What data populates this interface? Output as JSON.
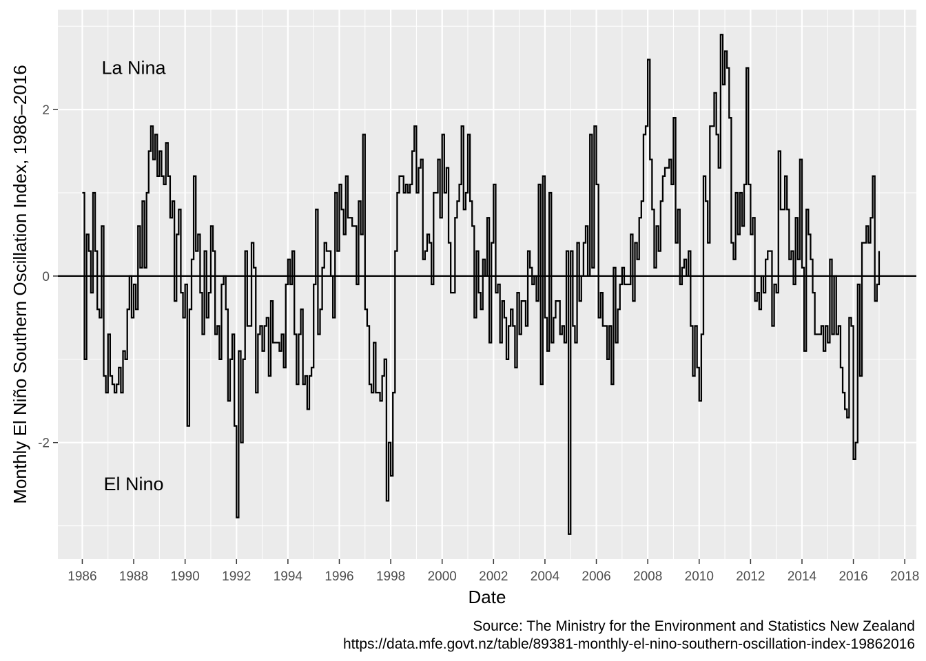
{
  "chart_data": {
    "type": "line",
    "style": "step",
    "xlabel": "Date",
    "ylabel": "Monthly El Niño Southern Oscillation Index, 1986–2016",
    "xlim": [
      1985.05,
      2018.45
    ],
    "ylim": [
      -3.4,
      3.2
    ],
    "x_ticks_major": [
      1986,
      1988,
      1990,
      1992,
      1994,
      1996,
      1998,
      2000,
      2002,
      2004,
      2006,
      2008,
      2010,
      2012,
      2014,
      2016,
      2018
    ],
    "x_ticks_major_labels": [
      "1986",
      "1988",
      "1990",
      "1992",
      "1994",
      "1996",
      "1998",
      "2000",
      "2002",
      "2004",
      "2006",
      "2008",
      "2010",
      "2012",
      "2014",
      "2016",
      "2018"
    ],
    "x_ticks_minor": [
      1985,
      1987,
      1989,
      1991,
      1993,
      1995,
      1997,
      1999,
      2001,
      2003,
      2005,
      2007,
      2009,
      2011,
      2013,
      2015,
      2017
    ],
    "y_ticks_major": [
      -2,
      0,
      2
    ],
    "y_ticks_major_labels": [
      "-2",
      "0",
      "2"
    ],
    "y_ticks_minor": [
      -3,
      -1,
      1,
      3
    ],
    "grid": true,
    "reference_line_y": 0,
    "annotations": [
      {
        "text": "La Nina",
        "x": 1988.0,
        "y": 2.5
      },
      {
        "text": "El Nino",
        "x": 1988.0,
        "y": -2.5
      }
    ],
    "caption": [
      "Source: The Ministry for the Environment and Statistics New Zealand",
      "https://data.mfe.govt.nz/table/89381-monthly-el-nino-southern-oscillation-index-19862016"
    ],
    "series": [
      {
        "start_year": 1986,
        "step": "monthly",
        "values": [
          1.0,
          -1.0,
          0.5,
          0.3,
          -0.2,
          1.0,
          0.3,
          -0.4,
          -0.5,
          0.6,
          -1.2,
          -1.4,
          -0.7,
          -1.2,
          -1.3,
          -1.4,
          -1.3,
          -1.1,
          -1.4,
          -0.9,
          -1.0,
          -0.4,
          0.0,
          -0.5,
          -0.1,
          -0.4,
          0.6,
          0.1,
          0.9,
          0.1,
          1.0,
          1.5,
          1.8,
          1.4,
          1.7,
          1.2,
          1.5,
          1.2,
          1.1,
          1.6,
          1.2,
          0.7,
          0.9,
          -0.3,
          0.5,
          0.8,
          -0.2,
          -0.5,
          -0.1,
          -1.8,
          -0.4,
          0.2,
          1.2,
          0.3,
          0.5,
          -0.2,
          -0.7,
          0.3,
          -0.5,
          -0.2,
          0.6,
          0.3,
          -0.7,
          -0.6,
          -1.0,
          -0.1,
          0.0,
          -0.4,
          -1.5,
          -1.0,
          -0.7,
          -1.8,
          -2.9,
          -0.9,
          -2.0,
          -1.0,
          0.3,
          -0.6,
          -0.6,
          0.4,
          0.1,
          -1.4,
          -0.7,
          -0.6,
          -0.9,
          -0.6,
          -0.5,
          -1.2,
          -0.3,
          -0.8,
          -0.8,
          -0.8,
          -0.9,
          -0.7,
          -1.1,
          -0.1,
          0.2,
          -0.1,
          0.3,
          -0.7,
          -1.3,
          -0.7,
          -0.4,
          -1.3,
          -1.2,
          -1.6,
          -1.2,
          -1.1,
          -0.1,
          0.8,
          -0.7,
          -0.4,
          0.1,
          0.4,
          0.3,
          0.3,
          0.0,
          -0.5,
          1.0,
          0.3,
          1.1,
          0.8,
          0.5,
          1.2,
          0.7,
          0.7,
          0.6,
          0.6,
          -0.1,
          0.9,
          0.5,
          1.7,
          -0.4,
          -0.6,
          -1.3,
          -1.4,
          -0.8,
          -1.4,
          -1.4,
          -1.5,
          -1.2,
          -1.0,
          -2.7,
          -2.0,
          -2.4,
          -1.4,
          0.3,
          1.0,
          1.2,
          1.2,
          1.0,
          1.1,
          1.0,
          1.1,
          1.5,
          1.8,
          1.0,
          1.3,
          1.4,
          0.2,
          0.3,
          0.5,
          0.4,
          -0.1,
          1.0,
          1.0,
          1.4,
          0.7,
          1.7,
          1.0,
          1.3,
          0.4,
          -0.2,
          -0.2,
          0.7,
          0.9,
          1.1,
          1.8,
          0.8,
          1.0,
          1.7,
          0.9,
          0.6,
          -0.5,
          0.3,
          -0.2,
          -0.4,
          0.2,
          0.0,
          0.7,
          -0.8,
          0.4,
          1.1,
          -0.2,
          -0.1,
          -0.8,
          -0.3,
          -0.5,
          -1.0,
          -0.6,
          -0.4,
          -0.6,
          -1.1,
          -0.2,
          -0.7,
          -0.3,
          -0.3,
          -0.6,
          0.3,
          0.1,
          -0.1,
          0.0,
          -0.3,
          1.1,
          -1.3,
          1.2,
          -0.5,
          -0.9,
          1.0,
          -0.8,
          -0.5,
          -0.3,
          -0.3,
          -0.7,
          -0.6,
          -0.8,
          0.3,
          -3.1,
          0.3,
          -0.6,
          -0.8,
          0.4,
          -0.3,
          0.0,
          0.4,
          0.6,
          0.0,
          1.7,
          0.1,
          1.8,
          1.1,
          -0.5,
          -0.2,
          -0.6,
          -0.6,
          -1.0,
          -0.6,
          -1.3,
          0.1,
          -0.8,
          -0.4,
          -0.1,
          0.1,
          -0.1,
          -0.1,
          -0.1,
          0.5,
          -0.3,
          0.4,
          0.2,
          0.7,
          0.9,
          1.7,
          1.8,
          2.6,
          1.4,
          0.8,
          0.1,
          0.6,
          0.3,
          0.9,
          1.2,
          1.3,
          1.3,
          1.4,
          1.1,
          1.9,
          0.4,
          0.8,
          -0.1,
          0.1,
          0.2,
          0.0,
          0.3,
          -0.6,
          -1.2,
          -0.6,
          -1.1,
          -1.5,
          -0.7,
          1.2,
          0.9,
          0.4,
          1.8,
          1.8,
          2.2,
          1.7,
          1.3,
          2.9,
          2.3,
          2.7,
          2.5,
          1.9,
          0.4,
          0.2,
          1.0,
          0.5,
          1.0,
          0.6,
          1.1,
          2.5,
          1.1,
          0.5,
          0.7,
          -0.3,
          -0.2,
          -0.4,
          0.0,
          -0.2,
          0.2,
          0.3,
          0.3,
          -0.6,
          -0.1,
          -0.2,
          1.5,
          0.8,
          0.8,
          1.2,
          0.8,
          0.2,
          0.3,
          -0.1,
          0.7,
          0.2,
          1.4,
          0.1,
          -0.9,
          0.8,
          0.5,
          0.2,
          -0.2,
          -0.7,
          -0.7,
          -0.7,
          -0.6,
          -0.9,
          -0.6,
          -0.8,
          0.2,
          -0.7,
          0.0,
          -0.7,
          -0.6,
          -1.1,
          -1.4,
          -1.6,
          -1.7,
          -0.5,
          -0.6,
          -2.2,
          -2.0,
          -0.1,
          -1.2,
          0.4,
          0.4,
          0.6,
          0.4,
          0.7,
          1.2,
          -0.3,
          -0.1,
          0.3
        ]
      }
    ]
  }
}
